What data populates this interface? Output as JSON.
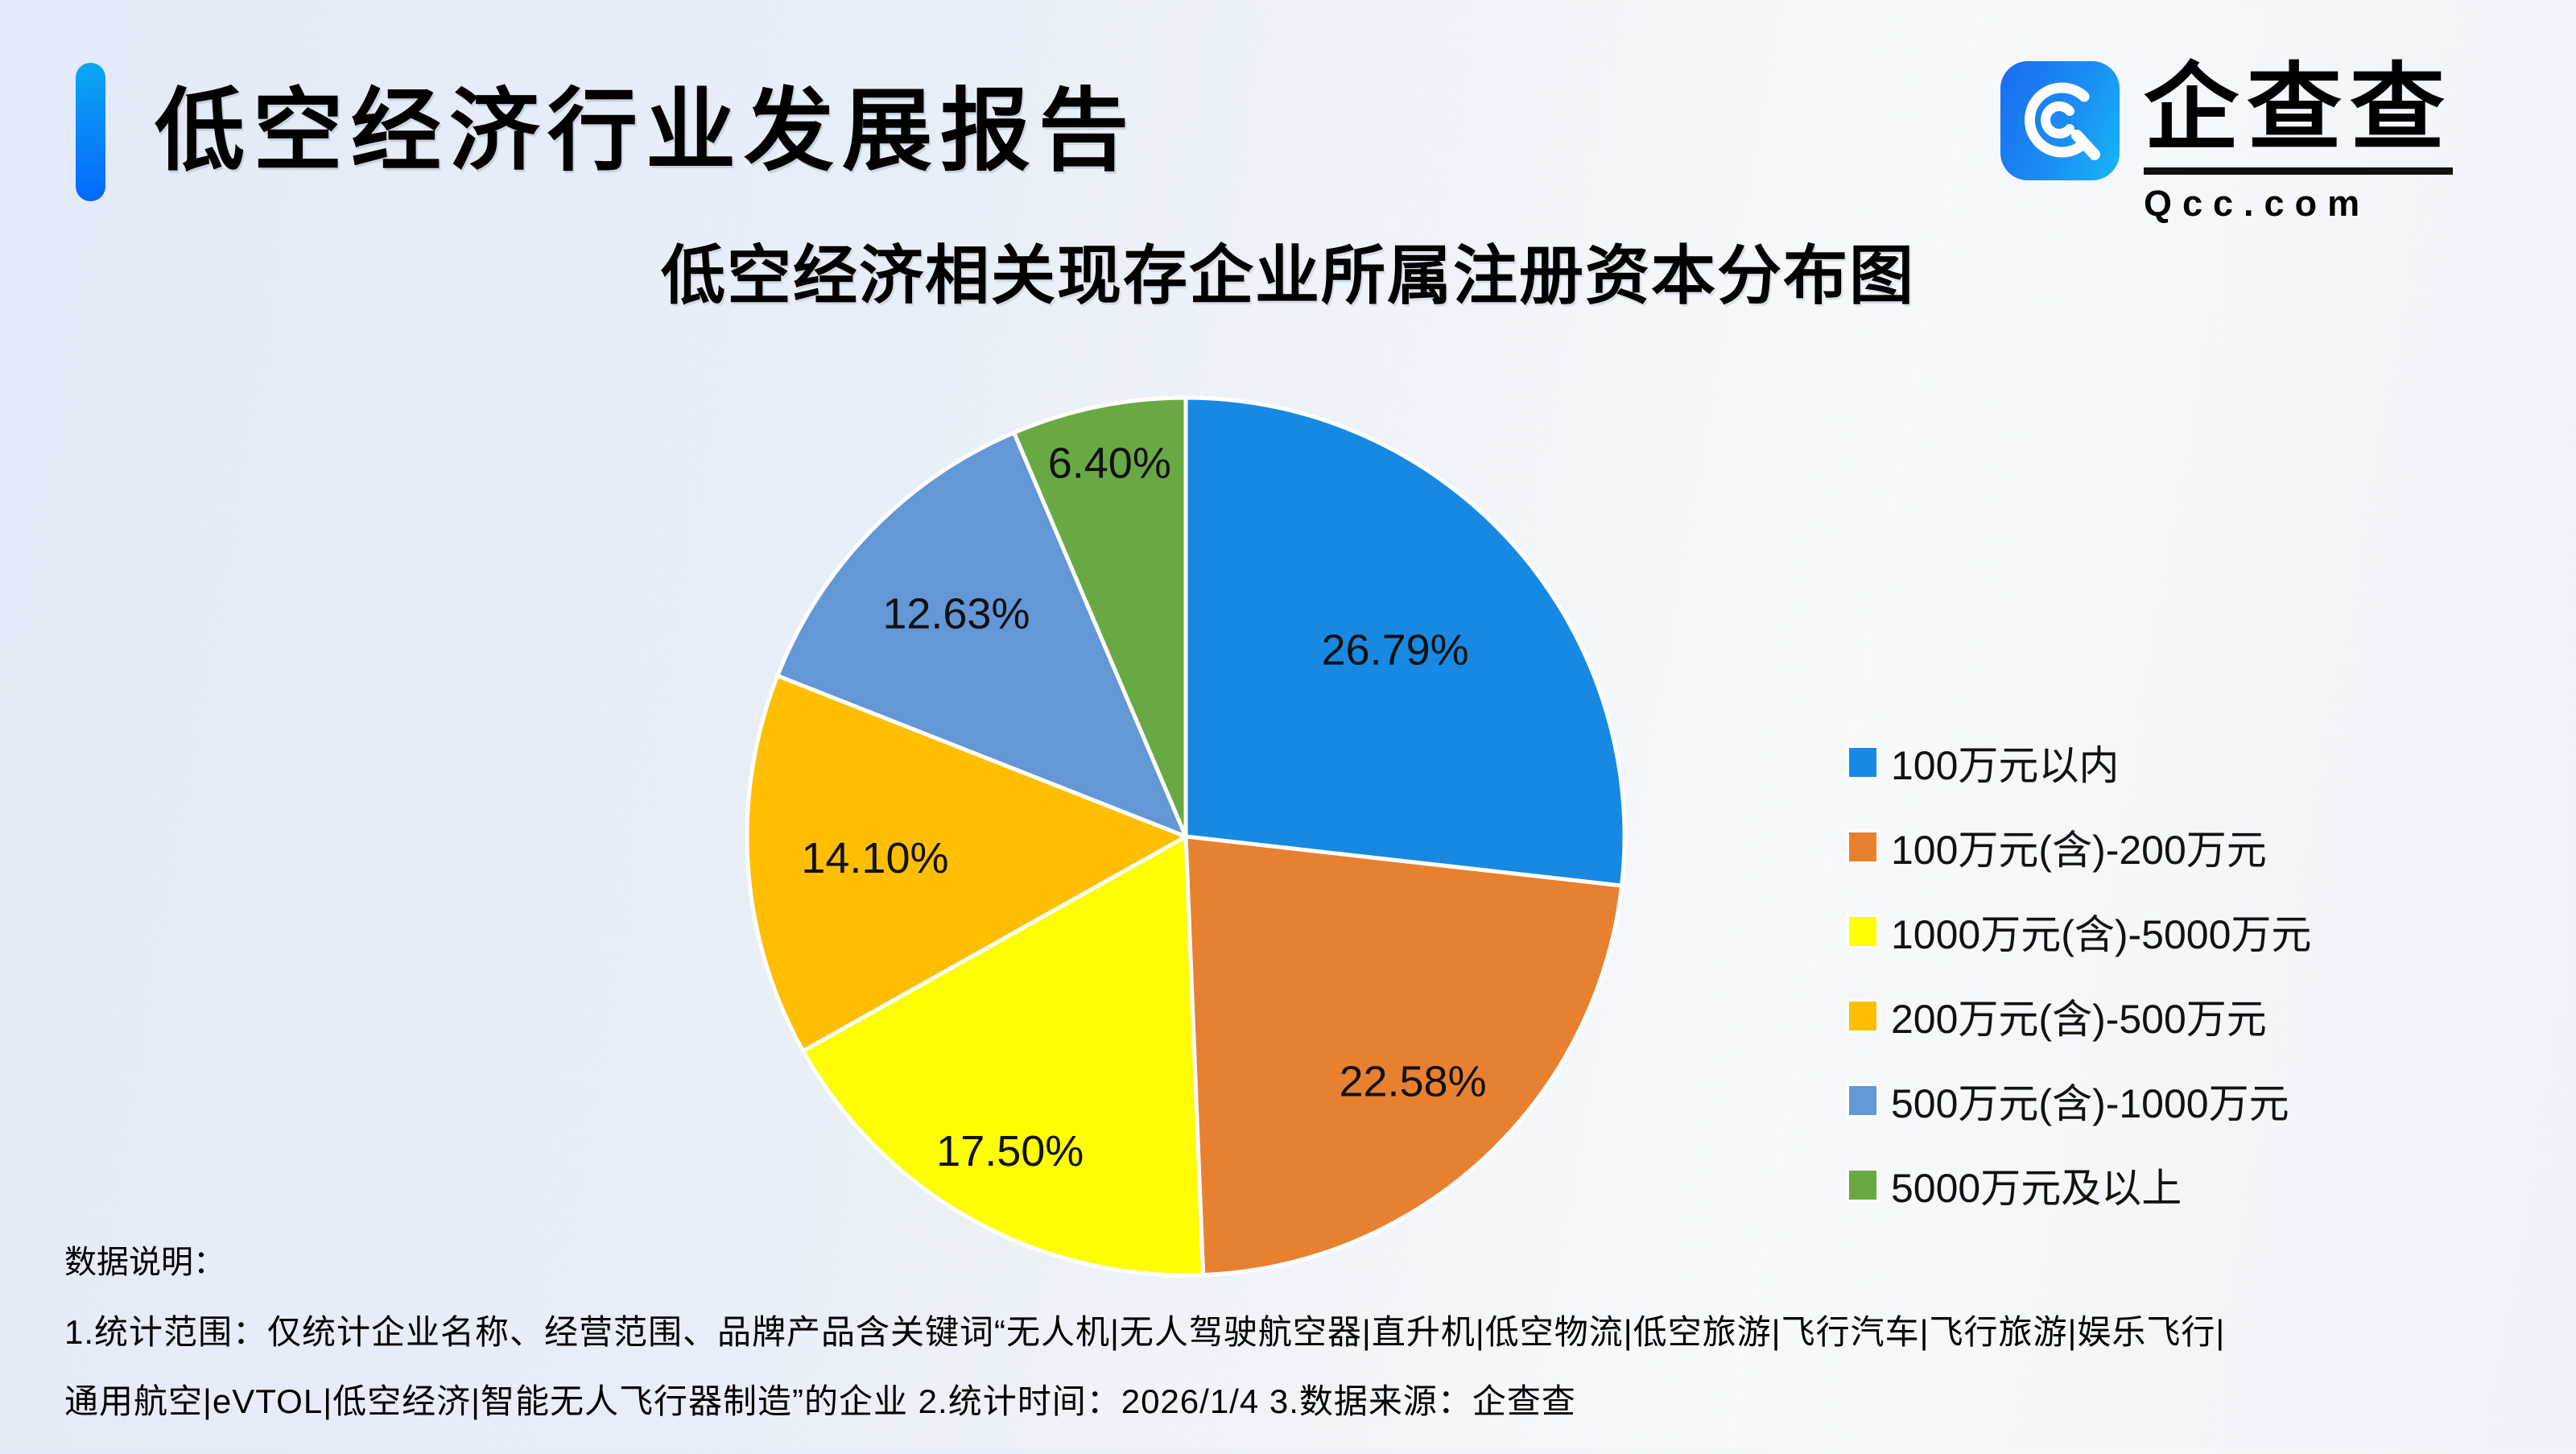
{
  "header": {
    "title": "低空经济行业发展报告"
  },
  "brand": {
    "name": "企查查",
    "domain": "Qcc.com",
    "icon": "qcc-logo",
    "icon_bg_from": "#1a6df0",
    "icon_bg_to": "#17b7f7"
  },
  "chart_data": {
    "type": "pie",
    "title": "低空经济相关现存企业所属注册资本分布图",
    "unit": "percent",
    "start_angle": "12-oclock",
    "direction": "clockwise",
    "legend_position": "right",
    "label_format": "0.00%",
    "slices": [
      {
        "label": "100万元以内",
        "value": 26.79,
        "display": "26.79%",
        "color": "#1789E3",
        "label_r": 0.64
      },
      {
        "label": "100万元(含)-200万元",
        "value": 22.58,
        "display": "22.58%",
        "color": "#E8812F",
        "label_r": 0.76
      },
      {
        "label": "1000万元(含)-5000万元",
        "value": 17.5,
        "display": "17.50%",
        "color": "#FEFE00",
        "label_r": 0.82
      },
      {
        "label": "200万元(含)-500万元",
        "value": 14.1,
        "display": "14.10%",
        "color": "#FFBE00",
        "label_r": 0.71
      },
      {
        "label": "500万元(含)-1000万元",
        "value": 12.63,
        "display": "12.63%",
        "color": "#6397D5",
        "label_r": 0.73
      },
      {
        "label": "5000万元及以上",
        "value": 6.4,
        "display": "6.40%",
        "color": "#69A944",
        "label_r": 0.87
      }
    ]
  },
  "footer": {
    "heading": "数据说明：",
    "line1": "1.统计范围：仅统计企业名称、经营范围、品牌产品含关键词“无人机|无人驾驶航空器|直升机|低空物流|低空旅游|飞行汽车|飞行旅游|娱乐飞行|",
    "line2": "通用航空|eVTOL|低空经济|智能无人飞行器制造”的企业  2.统计时间：2026/1/4  3.数据来源：企查查"
  }
}
